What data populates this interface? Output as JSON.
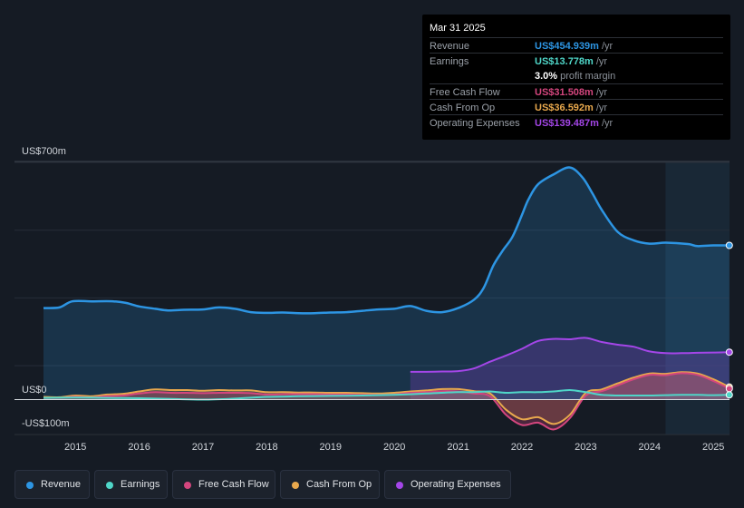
{
  "tooltip": {
    "date": "Mar 31 2025",
    "rows": [
      {
        "label": "Revenue",
        "value": "US$454.939m",
        "unit": "/yr",
        "color": "#2d95e3"
      },
      {
        "label": "Earnings",
        "value": "US$13.778m",
        "unit": "/yr",
        "color": "#4fd6c8"
      },
      {
        "label": "",
        "value": "3.0%",
        "unit": "profit margin",
        "color": "#ffffff"
      },
      {
        "label": "Free Cash Flow",
        "value": "US$31.508m",
        "unit": "/yr",
        "color": "#d4467e"
      },
      {
        "label": "Cash From Op",
        "value": "US$36.592m",
        "unit": "/yr",
        "color": "#e8a84d"
      },
      {
        "label": "Operating Expenses",
        "value": "US$139.487m",
        "unit": "/yr",
        "color": "#a446e8"
      }
    ]
  },
  "legend": [
    {
      "label": "Revenue",
      "color": "#2d95e3"
    },
    {
      "label": "Earnings",
      "color": "#4fd6c8"
    },
    {
      "label": "Free Cash Flow",
      "color": "#d4467e"
    },
    {
      "label": "Cash From Op",
      "color": "#e8a84d"
    },
    {
      "label": "Operating Expenses",
      "color": "#a446e8"
    }
  ],
  "chart_data": {
    "type": "area",
    "x_ticks": [
      "2015",
      "2016",
      "2017",
      "2018",
      "2019",
      "2020",
      "2021",
      "2022",
      "2023",
      "2024",
      "2025"
    ],
    "y_labels": {
      "top": "US$700m",
      "zero": "US$0",
      "bottom": "-US$100m"
    },
    "ylim": [
      -100,
      700
    ],
    "x_range": [
      2014.5,
      2025.25
    ],
    "forecast_from": 2024.25,
    "series": [
      {
        "name": "Revenue",
        "color": "#2d95e3",
        "points": [
          [
            2014.5,
            270
          ],
          [
            2014.75,
            272
          ],
          [
            2014.95,
            290
          ],
          [
            2015.25,
            290
          ],
          [
            2015.6,
            290
          ],
          [
            2015.8,
            285
          ],
          [
            2016,
            275
          ],
          [
            2016.25,
            268
          ],
          [
            2016.45,
            263
          ],
          [
            2016.7,
            265
          ],
          [
            2017,
            266
          ],
          [
            2017.25,
            272
          ],
          [
            2017.5,
            268
          ],
          [
            2017.75,
            258
          ],
          [
            2018,
            256
          ],
          [
            2018.25,
            257
          ],
          [
            2018.5,
            255
          ],
          [
            2018.75,
            255
          ],
          [
            2019,
            257
          ],
          [
            2019.25,
            258
          ],
          [
            2019.5,
            262
          ],
          [
            2019.75,
            266
          ],
          [
            2020,
            268
          ],
          [
            2020.25,
            276
          ],
          [
            2020.5,
            262
          ],
          [
            2020.75,
            258
          ],
          [
            2021,
            270
          ],
          [
            2021.25,
            295
          ],
          [
            2021.4,
            330
          ],
          [
            2021.55,
            395
          ],
          [
            2021.7,
            440
          ],
          [
            2021.85,
            480
          ],
          [
            2022,
            545
          ],
          [
            2022.1,
            590
          ],
          [
            2022.25,
            635
          ],
          [
            2022.5,
            665
          ],
          [
            2022.75,
            685
          ],
          [
            2022.95,
            655
          ],
          [
            2023.1,
            610
          ],
          [
            2023.25,
            560
          ],
          [
            2023.5,
            495
          ],
          [
            2023.75,
            470
          ],
          [
            2024,
            460
          ],
          [
            2024.25,
            463
          ],
          [
            2024.6,
            459
          ],
          [
            2024.75,
            453
          ],
          [
            2025,
            455
          ],
          [
            2025.25,
            455
          ]
        ]
      },
      {
        "name": "Operating Expenses",
        "color": "#a446e8",
        "points": [
          [
            2020.25,
            82
          ],
          [
            2020.5,
            82
          ],
          [
            2020.75,
            83
          ],
          [
            2021,
            84
          ],
          [
            2021.25,
            92
          ],
          [
            2021.5,
            112
          ],
          [
            2021.75,
            130
          ],
          [
            2022,
            150
          ],
          [
            2022.25,
            173
          ],
          [
            2022.5,
            179
          ],
          [
            2022.75,
            178
          ],
          [
            2023,
            182
          ],
          [
            2023.25,
            170
          ],
          [
            2023.5,
            162
          ],
          [
            2023.75,
            156
          ],
          [
            2024,
            142
          ],
          [
            2024.25,
            137
          ],
          [
            2024.5,
            137
          ],
          [
            2024.75,
            138
          ],
          [
            2025,
            139
          ],
          [
            2025.25,
            140
          ]
        ]
      },
      {
        "name": "Cash From Op",
        "color": "#e8a84d",
        "points": [
          [
            2014.5,
            8
          ],
          [
            2014.75,
            7
          ],
          [
            2015,
            12
          ],
          [
            2015.25,
            10
          ],
          [
            2015.5,
            15
          ],
          [
            2015.75,
            17
          ],
          [
            2016,
            24
          ],
          [
            2016.25,
            30
          ],
          [
            2016.5,
            28
          ],
          [
            2016.75,
            28
          ],
          [
            2017,
            26
          ],
          [
            2017.25,
            28
          ],
          [
            2017.5,
            27
          ],
          [
            2017.75,
            27
          ],
          [
            2018,
            22
          ],
          [
            2018.25,
            22
          ],
          [
            2018.5,
            21
          ],
          [
            2018.75,
            21
          ],
          [
            2019,
            20
          ],
          [
            2019.25,
            20
          ],
          [
            2019.5,
            19
          ],
          [
            2019.75,
            18
          ],
          [
            2020,
            20
          ],
          [
            2020.25,
            24
          ],
          [
            2020.5,
            27
          ],
          [
            2020.75,
            31
          ],
          [
            2021,
            31
          ],
          [
            2021.25,
            25
          ],
          [
            2021.5,
            18
          ],
          [
            2021.75,
            -30
          ],
          [
            2022,
            -58
          ],
          [
            2022.25,
            -52
          ],
          [
            2022.5,
            -72
          ],
          [
            2022.75,
            -45
          ],
          [
            2023,
            20
          ],
          [
            2023.25,
            30
          ],
          [
            2023.5,
            48
          ],
          [
            2023.75,
            65
          ],
          [
            2024,
            77
          ],
          [
            2024.25,
            76
          ],
          [
            2024.5,
            81
          ],
          [
            2024.75,
            77
          ],
          [
            2025,
            60
          ],
          [
            2025.25,
            37
          ]
        ]
      },
      {
        "name": "Free Cash Flow",
        "color": "#d4467e",
        "points": [
          [
            2014.5,
            5
          ],
          [
            2014.75,
            5
          ],
          [
            2015,
            8
          ],
          [
            2015.25,
            6
          ],
          [
            2015.5,
            10
          ],
          [
            2015.75,
            12
          ],
          [
            2016,
            18
          ],
          [
            2016.25,
            22
          ],
          [
            2016.5,
            20
          ],
          [
            2016.75,
            20
          ],
          [
            2017,
            19
          ],
          [
            2017.25,
            20
          ],
          [
            2017.5,
            20
          ],
          [
            2017.75,
            19
          ],
          [
            2018,
            15
          ],
          [
            2018.25,
            16
          ],
          [
            2018.5,
            16
          ],
          [
            2018.75,
            16
          ],
          [
            2019,
            15
          ],
          [
            2019.25,
            15
          ],
          [
            2019.5,
            14
          ],
          [
            2019.75,
            14
          ],
          [
            2020,
            15
          ],
          [
            2020.25,
            20
          ],
          [
            2020.5,
            22
          ],
          [
            2020.75,
            25
          ],
          [
            2021,
            24
          ],
          [
            2021.25,
            18
          ],
          [
            2021.5,
            10
          ],
          [
            2021.75,
            -45
          ],
          [
            2022,
            -75
          ],
          [
            2022.25,
            -68
          ],
          [
            2022.5,
            -88
          ],
          [
            2022.75,
            -55
          ],
          [
            2023,
            12
          ],
          [
            2023.25,
            25
          ],
          [
            2023.5,
            42
          ],
          [
            2023.75,
            60
          ],
          [
            2024,
            73
          ],
          [
            2024.25,
            72
          ],
          [
            2024.5,
            78
          ],
          [
            2024.75,
            73
          ],
          [
            2025,
            55
          ],
          [
            2025.25,
            32
          ]
        ]
      },
      {
        "name": "Earnings",
        "color": "#4fd6c8",
        "points": [
          [
            2014.5,
            5
          ],
          [
            2015,
            6
          ],
          [
            2015.5,
            5
          ],
          [
            2016,
            4
          ],
          [
            2016.5,
            2
          ],
          [
            2017,
            0
          ],
          [
            2017.5,
            3
          ],
          [
            2018,
            8
          ],
          [
            2018.5,
            10
          ],
          [
            2019,
            11
          ],
          [
            2019.5,
            12
          ],
          [
            2020,
            14
          ],
          [
            2020.5,
            18
          ],
          [
            2021,
            22
          ],
          [
            2021.25,
            22
          ],
          [
            2021.5,
            24
          ],
          [
            2021.75,
            20
          ],
          [
            2022,
            22
          ],
          [
            2022.25,
            22
          ],
          [
            2022.5,
            24
          ],
          [
            2022.75,
            28
          ],
          [
            2023,
            22
          ],
          [
            2023.25,
            14
          ],
          [
            2023.5,
            12
          ],
          [
            2023.75,
            12
          ],
          [
            2024,
            12
          ],
          [
            2024.25,
            13
          ],
          [
            2024.5,
            14
          ],
          [
            2024.75,
            14
          ],
          [
            2025,
            13
          ],
          [
            2025.25,
            14
          ]
        ]
      }
    ]
  }
}
